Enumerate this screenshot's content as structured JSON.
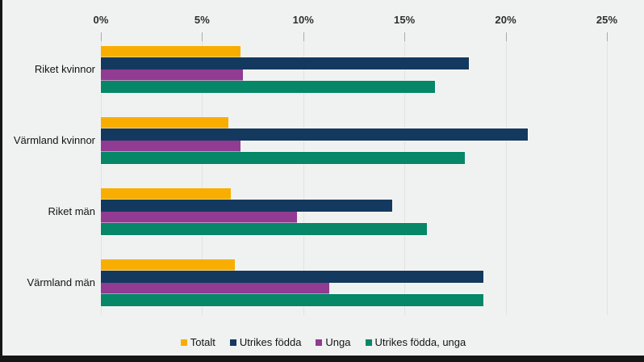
{
  "chart_data": {
    "type": "bar",
    "orientation": "horizontal",
    "title": "",
    "categories": [
      "Riket kvinnor",
      "Värmland kvinnor",
      "Riket män",
      "Värmland män"
    ],
    "series": [
      {
        "name": "Totalt",
        "color": "#F8AE00",
        "halo": false,
        "values": [
          6.9,
          6.3,
          6.4,
          6.6
        ]
      },
      {
        "name": "Utrikes födda",
        "color": "#14395E",
        "halo": true,
        "values": [
          18.2,
          21.1,
          14.4,
          18.9
        ]
      },
      {
        "name": "Unga",
        "color": "#913B92",
        "halo": false,
        "values": [
          7.0,
          6.9,
          9.7,
          11.3
        ]
      },
      {
        "name": "Utrikes födda, unga",
        "color": "#058768",
        "halo": true,
        "values": [
          16.5,
          18.0,
          16.1,
          18.9
        ]
      }
    ],
    "x_axis": {
      "position": "top",
      "unit": "%",
      "min": 0,
      "max": 25,
      "tick_labels": [
        "0%",
        "5%",
        "10%",
        "15%",
        "20%",
        "25%"
      ],
      "tick_values": [
        0,
        5,
        10,
        15,
        20,
        25
      ]
    },
    "legend": {
      "position": "bottom",
      "entries": [
        "Totalt",
        "Utrikes födda",
        "Unga",
        "Utrikes födda, unga"
      ]
    },
    "grid": true
  },
  "colors": {
    "background": "#F0F1F1",
    "frame": "#161616",
    "gridline": "#E2E2E2",
    "tick": "#ABABAB",
    "axis_text": "#2E2E2E",
    "label_text": "#141414"
  }
}
